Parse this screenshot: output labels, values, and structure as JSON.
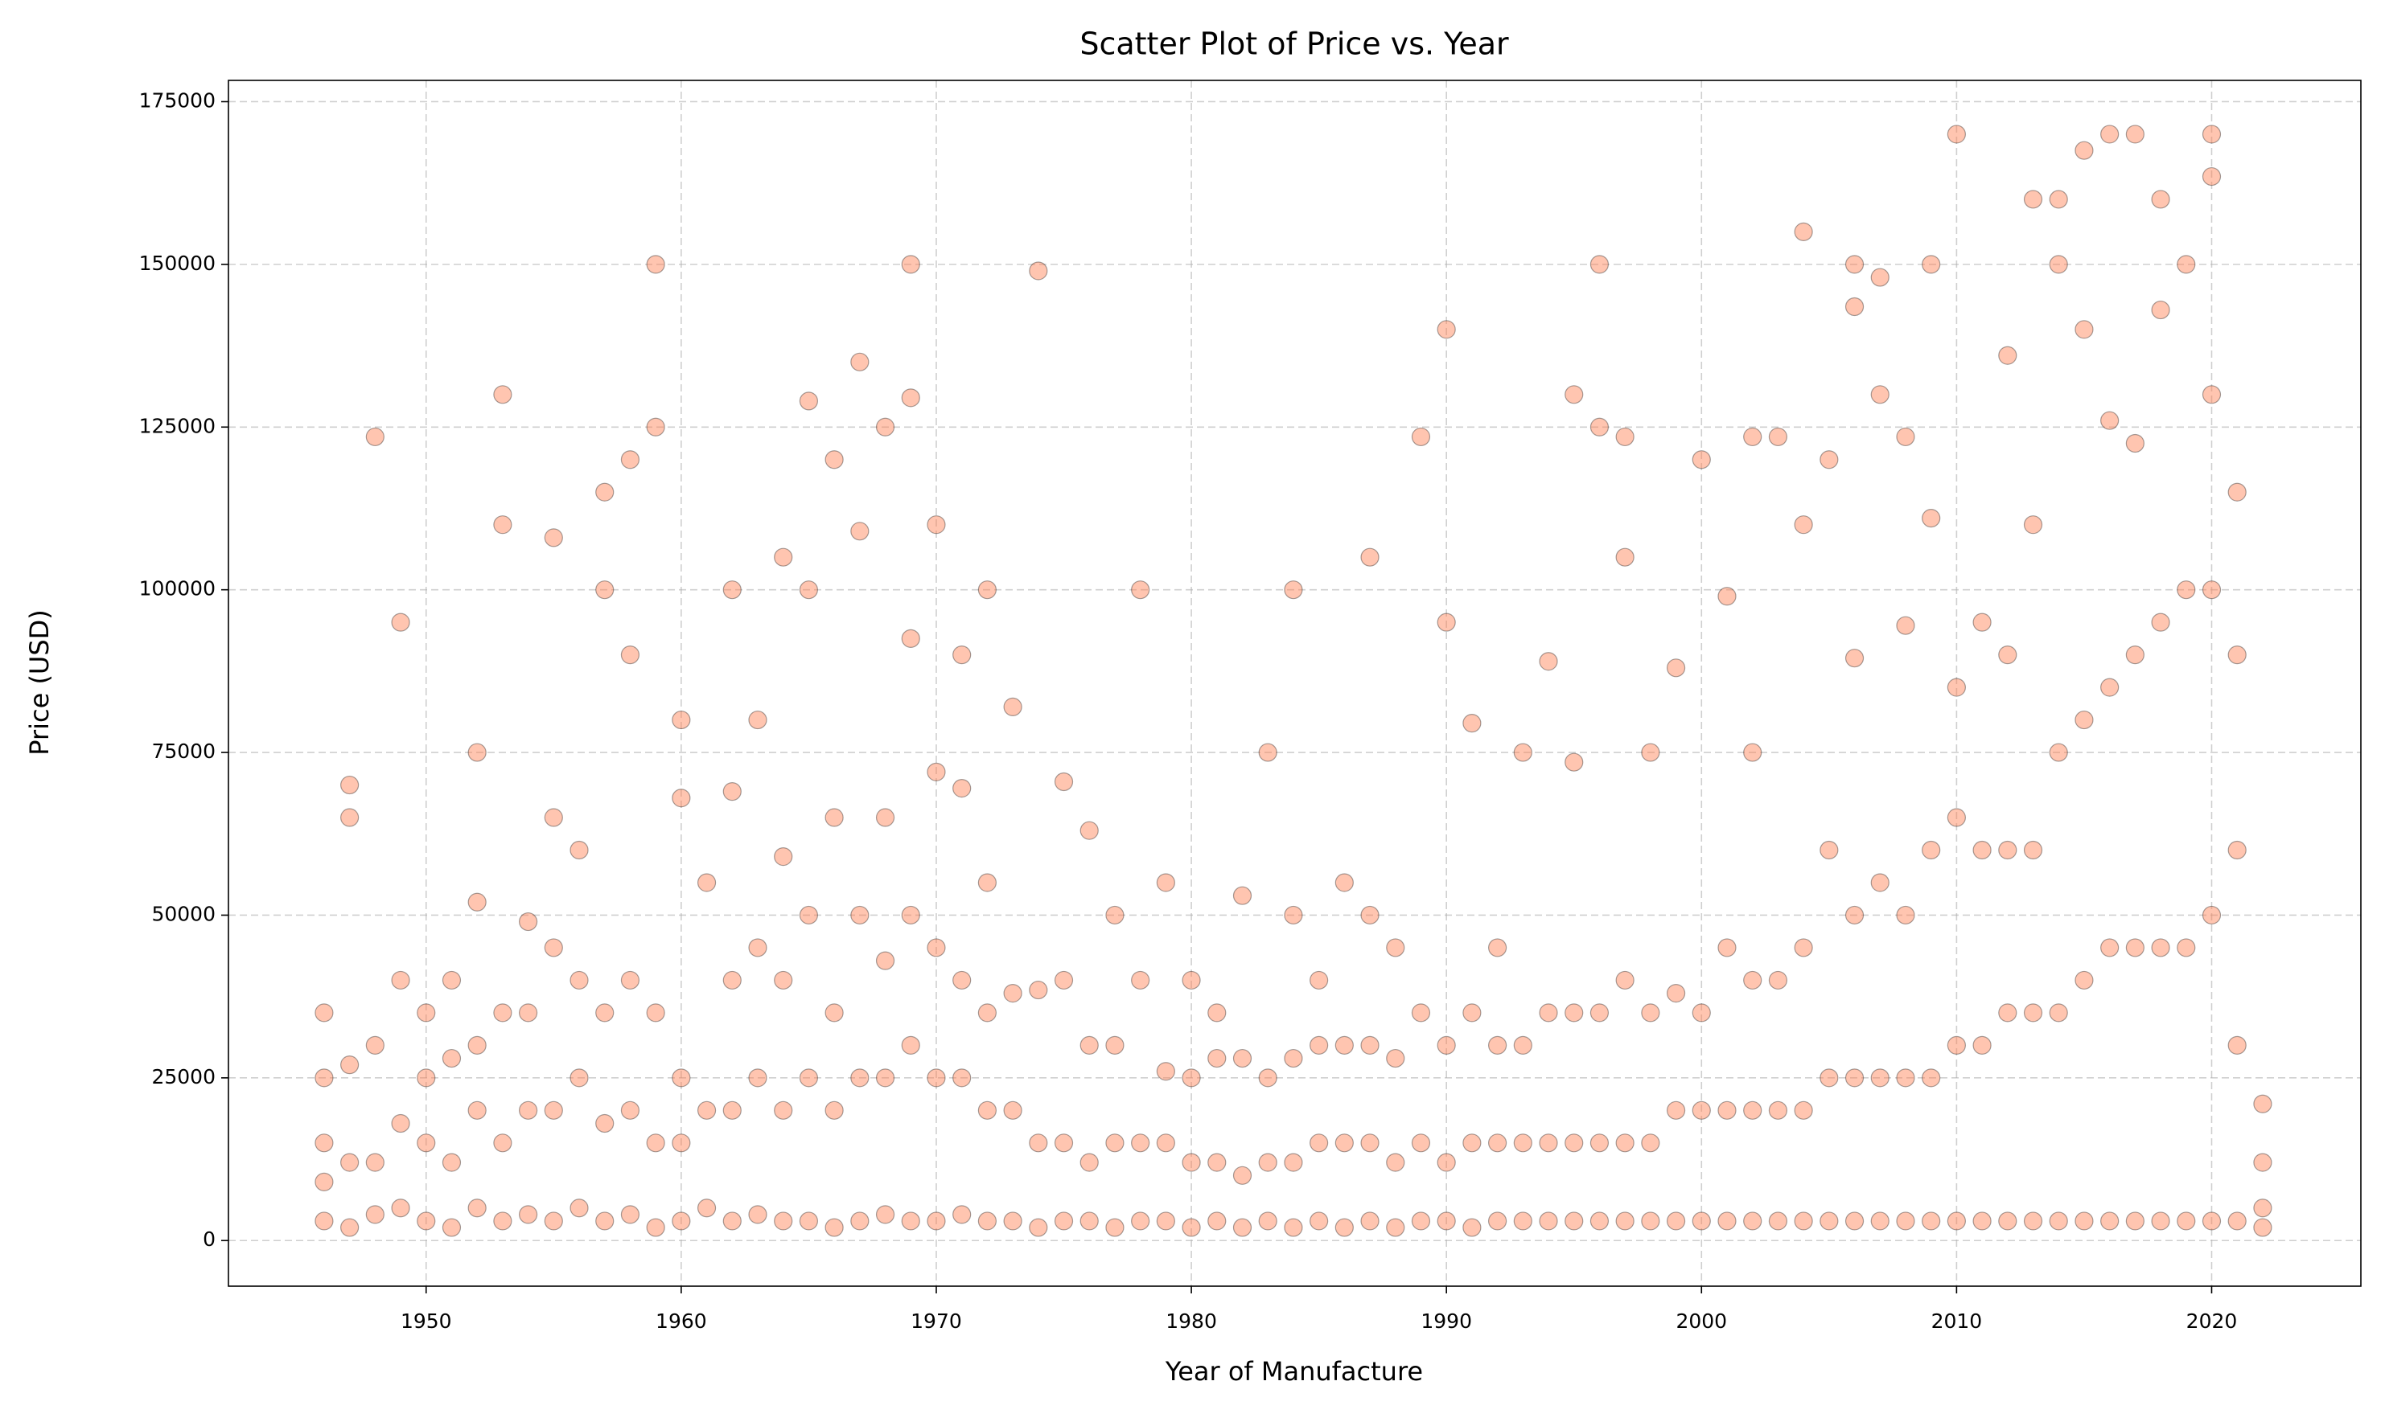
{
  "chart_data": {
    "type": "scatter",
    "title": "Scatter Plot of Price vs. Year",
    "x_label": "Year of Manufacture",
    "y_label": "Price (USD)",
    "color": "#ff7f50",
    "grid": true,
    "xlim": [
      1942.25,
      2025.85
    ],
    "ylim": [
      -7010,
      178271
    ],
    "xticks": [
      1950,
      1960,
      1970,
      1980,
      1990,
      2000,
      2010,
      2020
    ],
    "yticks": [
      0,
      25000,
      50000,
      75000,
      100000,
      125000,
      150000,
      175000
    ],
    "x": [
      1946,
      1946,
      1946,
      1946,
      1946,
      1947,
      1947,
      1947,
      1947,
      1947,
      1948,
      1948,
      1948,
      1948,
      1949,
      1949,
      1949,
      1949,
      1950,
      1950,
      1950,
      1950,
      1951,
      1951,
      1951,
      1951,
      1952,
      1952,
      1952,
      1952,
      1952,
      1953,
      1953,
      1953,
      1953,
      1953,
      1954,
      1954,
      1954,
      1954,
      1955,
      1955,
      1955,
      1955,
      1955,
      1956,
      1956,
      1956,
      1956,
      1957,
      1957,
      1957,
      1957,
      1957,
      1958,
      1958,
      1958,
      1958,
      1958,
      1959,
      1959,
      1959,
      1959,
      1959,
      1960,
      1960,
      1960,
      1960,
      1960,
      1961,
      1961,
      1961,
      1962,
      1962,
      1962,
      1962,
      1962,
      1963,
      1963,
      1963,
      1963,
      1964,
      1964,
      1964,
      1964,
      1964,
      1965,
      1965,
      1965,
      1965,
      1965,
      1966,
      1966,
      1966,
      1966,
      1966,
      1967,
      1967,
      1967,
      1967,
      1967,
      1968,
      1968,
      1968,
      1968,
      1968,
      1969,
      1969,
      1969,
      1969,
      1969,
      1969,
      1970,
      1970,
      1970,
      1970,
      1970,
      1971,
      1971,
      1971,
      1971,
      1971,
      1972,
      1972,
      1972,
      1972,
      1972,
      1973,
      1973,
      1973,
      1973,
      1974,
      1974,
      1974,
      1974,
      1975,
      1975,
      1975,
      1975,
      1976,
      1976,
      1976,
      1976,
      1977,
      1977,
      1977,
      1977,
      1978,
      1978,
      1978,
      1978,
      1979,
      1979,
      1979,
      1979,
      1980,
      1980,
      1980,
      1980,
      1981,
      1981,
      1981,
      1981,
      1982,
      1982,
      1982,
      1982,
      1983,
      1983,
      1983,
      1983,
      1984,
      1984,
      1984,
      1984,
      1984,
      1985,
      1985,
      1985,
      1985,
      1986,
      1986,
      1986,
      1986,
      1987,
      1987,
      1987,
      1987,
      1987,
      1988,
      1988,
      1988,
      1988,
      1989,
      1989,
      1989,
      1989,
      1990,
      1990,
      1990,
      1990,
      1990,
      1991,
      1991,
      1991,
      1991,
      1992,
      1992,
      1992,
      1992,
      1993,
      1993,
      1993,
      1993,
      1994,
      1994,
      1994,
      1994,
      1995,
      1995,
      1995,
      1995,
      1995,
      1996,
      1996,
      1996,
      1996,
      1996,
      1997,
      1997,
      1997,
      1997,
      1997,
      1998,
      1998,
      1998,
      1998,
      1999,
      1999,
      1999,
      1999,
      2000,
      2000,
      2000,
      2000,
      2001,
      2001,
      2001,
      2001,
      2002,
      2002,
      2002,
      2002,
      2002,
      2003,
      2003,
      2003,
      2003,
      2004,
      2004,
      2004,
      2004,
      2004,
      2005,
      2005,
      2005,
      2005,
      2006,
      2006,
      2006,
      2006,
      2006,
      2006,
      2007,
      2007,
      2007,
      2007,
      2007,
      2008,
      2008,
      2008,
      2008,
      2008,
      2009,
      2009,
      2009,
      2009,
      2009,
      2010,
      2010,
      2010,
      2010,
      2010,
      2011,
      2011,
      2011,
      2011,
      2012,
      2012,
      2012,
      2012,
      2012,
      2013,
      2013,
      2013,
      2013,
      2013,
      2014,
      2014,
      2014,
      2014,
      2014,
      2015,
      2015,
      2015,
      2015,
      2015,
      2016,
      2016,
      2016,
      2016,
      2016,
      2017,
      2017,
      2017,
      2017,
      2017,
      2018,
      2018,
      2018,
      2018,
      2018,
      2019,
      2019,
      2019,
      2019,
      2020,
      2020,
      2020,
      2020,
      2020,
      2020,
      2021,
      2021,
      2021,
      2021,
      2021,
      2022,
      2022,
      2022,
      2022
    ],
    "values": [
      3000,
      9000,
      15000,
      25000,
      35000,
      2000,
      12000,
      27000,
      65000,
      70000,
      4000,
      12000,
      30000,
      123500,
      5000,
      18000,
      40000,
      95000,
      3000,
      15000,
      25000,
      35000,
      2000,
      12000,
      28000,
      40000,
      5000,
      20000,
      30000,
      52000,
      75000,
      3000,
      15000,
      35000,
      110000,
      130000,
      4000,
      20000,
      35000,
      49000,
      3000,
      20000,
      45000,
      65000,
      108000,
      5000,
      25000,
      40000,
      60000,
      3000,
      18000,
      35000,
      100000,
      115000,
      4000,
      20000,
      40000,
      90000,
      120000,
      2000,
      15000,
      35000,
      150000,
      125000,
      3000,
      15000,
      25000,
      68000,
      80000,
      5000,
      20000,
      55000,
      3000,
      20000,
      40000,
      69000,
      100000,
      4000,
      25000,
      45000,
      80000,
      3000,
      20000,
      40000,
      59000,
      105000,
      3000,
      25000,
      50000,
      100000,
      129000,
      2000,
      20000,
      35000,
      65000,
      120000,
      3000,
      25000,
      50000,
      109000,
      135000,
      4000,
      25000,
      43000,
      65000,
      125000,
      3000,
      30000,
      50000,
      92500,
      129500,
      150000,
      3000,
      25000,
      45000,
      72000,
      110000,
      4000,
      25000,
      40000,
      69500,
      90000,
      3000,
      20000,
      35000,
      55000,
      100000,
      3000,
      20000,
      38000,
      82000,
      2000,
      15000,
      38500,
      149000,
      3000,
      15000,
      40000,
      70500,
      3000,
      12000,
      30000,
      63000,
      2000,
      15000,
      30000,
      50000,
      3000,
      15000,
      40000,
      100000,
      3000,
      15000,
      26000,
      55000,
      2000,
      12000,
      25000,
      40000,
      3000,
      12000,
      28000,
      35000,
      2000,
      10000,
      28000,
      53000,
      3000,
      12000,
      25000,
      75000,
      2000,
      12000,
      28000,
      50000,
      100000,
      3000,
      15000,
      30000,
      40000,
      2000,
      15000,
      30000,
      55000,
      3000,
      15000,
      30000,
      50000,
      105000,
      2000,
      12000,
      28000,
      45000,
      3000,
      15000,
      35000,
      123500,
      3000,
      12000,
      30000,
      95000,
      140000,
      2000,
      15000,
      35000,
      79500,
      3000,
      15000,
      30000,
      45000,
      3000,
      15000,
      30000,
      75000,
      3000,
      15000,
      35000,
      89000,
      3000,
      15000,
      35000,
      73500,
      130000,
      3000,
      15000,
      35000,
      125000,
      150000,
      3000,
      15000,
      40000,
      105000,
      123500,
      3000,
      15000,
      35000,
      75000,
      3000,
      20000,
      38000,
      88000,
      3000,
      20000,
      35000,
      120000,
      3000,
      20000,
      45000,
      99000,
      3000,
      20000,
      40000,
      75000,
      123500,
      3000,
      20000,
      40000,
      123500,
      3000,
      20000,
      45000,
      110000,
      155000,
      3000,
      25000,
      60000,
      120000,
      3000,
      25000,
      50000,
      89500,
      143500,
      150000,
      3000,
      25000,
      55000,
      130000,
      148000,
      3000,
      25000,
      50000,
      94500,
      123500,
      3000,
      25000,
      60000,
      111000,
      150000,
      3000,
      30000,
      65000,
      85000,
      170000,
      3000,
      30000,
      60000,
      95000,
      3000,
      35000,
      60000,
      90000,
      136000,
      3000,
      35000,
      60000,
      110000,
      160000,
      3000,
      35000,
      75000,
      150000,
      160000,
      3000,
      40000,
      80000,
      140000,
      167500,
      3000,
      45000,
      85000,
      126000,
      170000,
      3000,
      45000,
      90000,
      122500,
      170000,
      3000,
      45000,
      95000,
      143000,
      160000,
      3000,
      45000,
      100000,
      150000,
      3000,
      50000,
      100000,
      130000,
      163500,
      170000,
      3000,
      30000,
      60000,
      90000,
      115000,
      2000,
      5000,
      12000,
      21000
    ]
  }
}
